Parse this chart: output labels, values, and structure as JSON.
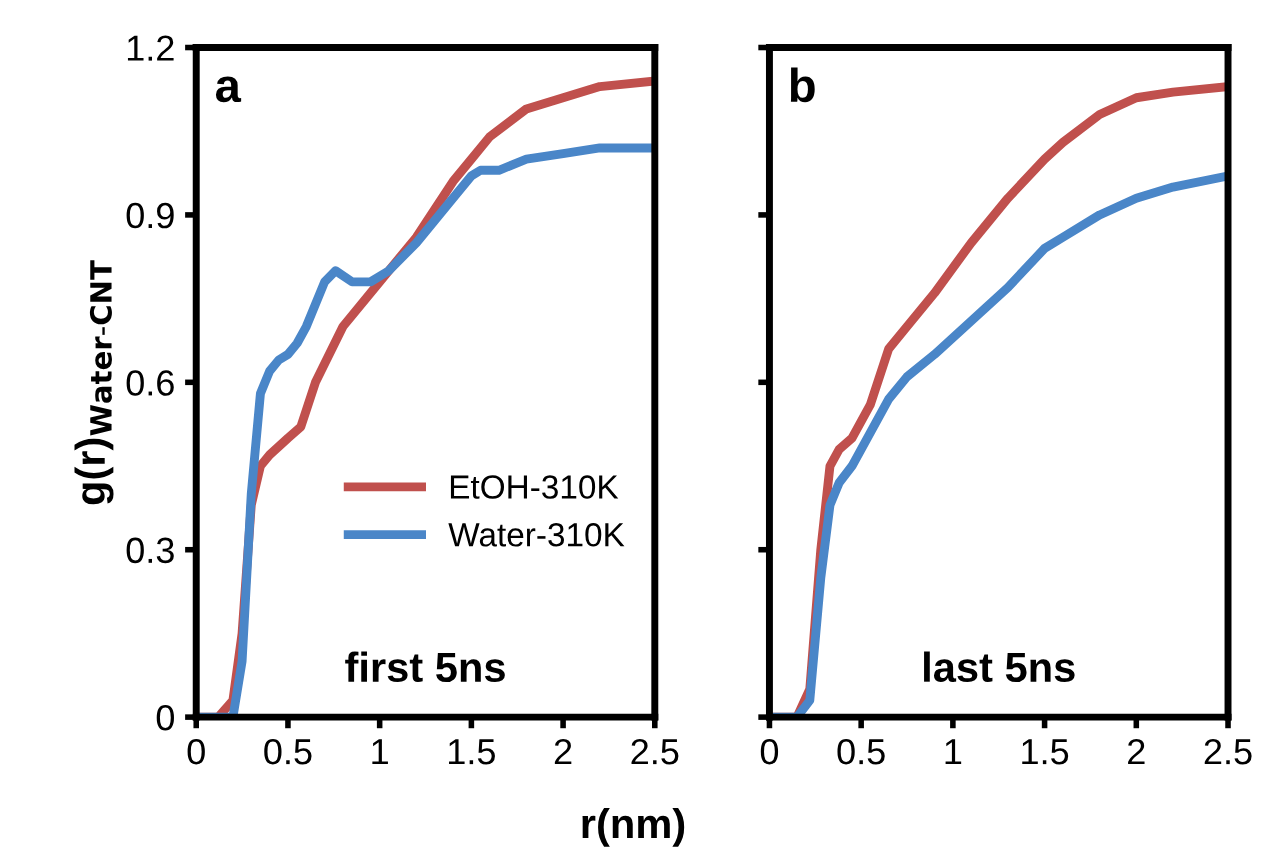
{
  "chart_data": [
    {
      "type": "line",
      "xlabel": "r(nm)",
      "ylabel": "g(r)$_{Water-CNT}$",
      "annotations": [
        "a",
        "first 5ns"
      ],
      "xlim": [
        0,
        2.5
      ],
      "xticks": [
        0,
        0.5,
        1,
        1.5,
        2,
        2.5
      ],
      "ylim": [
        0,
        1.2
      ],
      "yticks": [
        0,
        0.3,
        0.6,
        0.9,
        1.2
      ],
      "grid": false,
      "legend": "right",
      "line_style": "solid",
      "marker": "none",
      "series": [
        {
          "name": "EtOH-310K",
          "color": "#c0504d",
          "x": [
            0,
            0.12,
            0.2,
            0.25,
            0.3,
            0.35,
            0.4,
            0.5,
            0.57,
            0.65,
            0.8,
            1.0,
            1.2,
            1.4,
            1.5,
            1.6,
            1.8,
            2.0,
            2.2,
            2.5
          ],
          "values": [
            0,
            0,
            0.03,
            0.15,
            0.38,
            0.45,
            0.47,
            0.5,
            0.52,
            0.6,
            0.7,
            0.78,
            0.86,
            0.96,
            1.0,
            1.04,
            1.09,
            1.11,
            1.13,
            1.14
          ]
        },
        {
          "name": "Water-310K",
          "color": "#4a86c8",
          "x": [
            0,
            0.2,
            0.25,
            0.3,
            0.35,
            0.4,
            0.45,
            0.5,
            0.55,
            0.6,
            0.7,
            0.76,
            0.85,
            0.95,
            1.05,
            1.2,
            1.4,
            1.5,
            1.55,
            1.65,
            1.8,
            2.0,
            2.2,
            2.5
          ],
          "values": [
            0,
            0,
            0.1,
            0.4,
            0.58,
            0.62,
            0.64,
            0.65,
            0.67,
            0.7,
            0.78,
            0.8,
            0.78,
            0.78,
            0.8,
            0.85,
            0.93,
            0.97,
            0.98,
            0.98,
            1.0,
            1.01,
            1.02,
            1.02
          ]
        }
      ]
    },
    {
      "type": "line",
      "annotations": [
        "b",
        "last 5ns"
      ],
      "xlim": [
        0,
        2.5
      ],
      "xticks": [
        0,
        0.5,
        1,
        1.5,
        2,
        2.5
      ],
      "ylim": [
        0,
        1.2
      ],
      "yticks": [
        0,
        0.3,
        0.6,
        0.9,
        1.2
      ],
      "tick_labels": "x",
      "grid": false,
      "line_style": "solid",
      "marker": "none",
      "series": [
        {
          "color": "#c0504d",
          "x": [
            0,
            0.15,
            0.22,
            0.28,
            0.33,
            0.38,
            0.45,
            0.55,
            0.65,
            0.75,
            0.9,
            1.1,
            1.3,
            1.5,
            1.6,
            1.8,
            2.0,
            2.2,
            2.5
          ],
          "values": [
            0,
            0,
            0.05,
            0.3,
            0.45,
            0.48,
            0.5,
            0.56,
            0.66,
            0.7,
            0.76,
            0.85,
            0.93,
            1.0,
            1.03,
            1.08,
            1.11,
            1.12,
            1.13
          ]
        },
        {
          "color": "#4a86c8",
          "x": [
            0,
            0.15,
            0.22,
            0.28,
            0.33,
            0.38,
            0.45,
            0.55,
            0.65,
            0.75,
            0.9,
            1.1,
            1.3,
            1.5,
            1.6,
            1.8,
            2.0,
            2.2,
            2.5
          ],
          "values": [
            0,
            0,
            0.03,
            0.25,
            0.38,
            0.42,
            0.45,
            0.51,
            0.57,
            0.61,
            0.65,
            0.71,
            0.77,
            0.84,
            0.86,
            0.9,
            0.93,
            0.95,
            0.97
          ]
        }
      ]
    }
  ]
}
